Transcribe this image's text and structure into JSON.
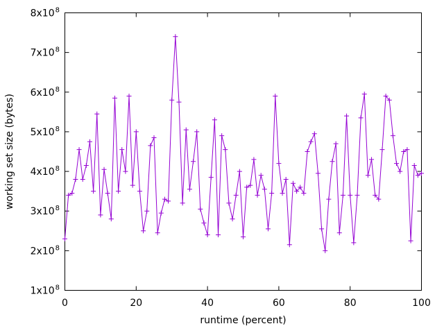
{
  "page": {
    "background_color": "#ffffff",
    "foreground_color": "#000000"
  },
  "chart_data": {
    "type": "line",
    "title": "",
    "xlabel": "runtime (percent)",
    "ylabel": "working set size (bytes)",
    "xlim": [
      0,
      100
    ],
    "ylim": [
      100000000,
      800000000
    ],
    "ylim_e8": [
      1,
      8
    ],
    "x_ticks": [
      "0",
      "20",
      "40",
      "60",
      "80",
      "100"
    ],
    "y_ticks": [
      "1x10^8",
      "2x10^8",
      "3x10^8",
      "4x10^8",
      "5x10^8",
      "6x10^8",
      "7x10^8",
      "8x10^8"
    ],
    "grid": false,
    "legend": "none",
    "border": "box with mirrored inward ticks",
    "line_color": "#9400d3",
    "marker": "plus",
    "marker_size_px": 7,
    "x_start": 0,
    "x_step": 1,
    "x_values_note": "x = runtime percent, one point per percent, 0..100",
    "values_unit": "bytes x 10^8",
    "values_e8": [
      2.3,
      3.4,
      3.45,
      3.8,
      4.55,
      3.8,
      4.15,
      4.75,
      3.5,
      5.45,
      2.9,
      4.05,
      3.45,
      2.8,
      5.85,
      3.5,
      4.55,
      4.0,
      5.9,
      3.65,
      5.0,
      3.5,
      2.5,
      3.0,
      4.65,
      4.85,
      2.45,
      2.95,
      3.3,
      3.25,
      5.8,
      7.4,
      5.75,
      3.2,
      5.05,
      3.55,
      4.25,
      5.0,
      3.05,
      2.7,
      2.4,
      3.85,
      5.3,
      2.4,
      4.9,
      4.55,
      3.2,
      2.8,
      3.4,
      4.0,
      2.35,
      3.6,
      3.65,
      4.3,
      3.4,
      3.9,
      3.55,
      2.55,
      3.45,
      5.9,
      4.2,
      3.45,
      3.8,
      2.15,
      3.7,
      3.5,
      3.6,
      3.45,
      4.5,
      4.75,
      4.95,
      3.95,
      2.55,
      2.0,
      3.3,
      4.25,
      4.7,
      2.45,
      3.4,
      5.4,
      3.4,
      2.2,
      3.4,
      5.35,
      5.95,
      3.9,
      4.3,
      3.4,
      3.3,
      4.55,
      5.9,
      5.8,
      4.9,
      4.2,
      4.0,
      4.5,
      4.55,
      2.25,
      4.15,
      3.9,
      3.95
    ]
  }
}
